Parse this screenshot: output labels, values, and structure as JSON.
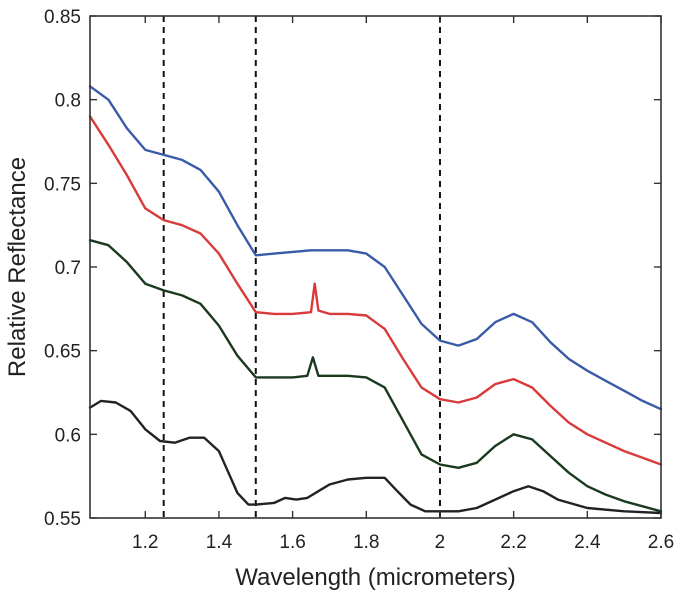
{
  "chart_data": {
    "type": "line",
    "title": "",
    "xlabel": "Wavelength (micrometers)",
    "ylabel": "Relative Reflectance",
    "xlim": [
      1.05,
      2.6
    ],
    "ylim": [
      0.55,
      0.85
    ],
    "xticks": [
      1.2,
      1.4,
      1.6,
      1.8,
      2.0,
      2.2,
      2.4,
      2.6
    ],
    "xtick_labels": [
      "1.2",
      "1.4",
      "1.6",
      "1.8",
      "2",
      "2.2",
      "2.4",
      "2.6"
    ],
    "yticks": [
      0.55,
      0.6,
      0.65,
      0.7,
      0.75,
      0.8,
      0.85
    ],
    "ytick_labels": [
      "0.55",
      "0.6",
      "0.65",
      "0.7",
      "0.75",
      "0.8",
      "0.85"
    ],
    "grid": false,
    "legend": "none",
    "reference_lines_x": [
      1.25,
      1.5,
      2.0
    ],
    "series": [
      {
        "color": "#3a5ba8",
        "x": [
          1.05,
          1.1,
          1.15,
          1.2,
          1.25,
          1.3,
          1.35,
          1.4,
          1.45,
          1.5,
          1.55,
          1.6,
          1.65,
          1.7,
          1.75,
          1.8,
          1.85,
          1.9,
          1.95,
          2.0,
          2.05,
          2.1,
          2.15,
          2.2,
          2.25,
          2.3,
          2.35,
          2.4,
          2.45,
          2.5,
          2.55,
          2.6
        ],
        "values": [
          0.808,
          0.8,
          0.783,
          0.77,
          0.767,
          0.764,
          0.758,
          0.745,
          0.725,
          0.707,
          0.708,
          0.709,
          0.71,
          0.71,
          0.71,
          0.708,
          0.7,
          0.683,
          0.666,
          0.656,
          0.653,
          0.657,
          0.667,
          0.672,
          0.667,
          0.655,
          0.645,
          0.638,
          0.632,
          0.626,
          0.62,
          0.615
        ]
      },
      {
        "color": "#d93a3a",
        "x": [
          1.05,
          1.1,
          1.15,
          1.2,
          1.25,
          1.3,
          1.35,
          1.4,
          1.45,
          1.5,
          1.55,
          1.6,
          1.65,
          1.66,
          1.67,
          1.7,
          1.75,
          1.8,
          1.85,
          1.9,
          1.95,
          2.0,
          2.05,
          2.1,
          2.15,
          2.2,
          2.25,
          2.3,
          2.35,
          2.4,
          2.45,
          2.5,
          2.55,
          2.6
        ],
        "values": [
          0.79,
          0.773,
          0.755,
          0.735,
          0.728,
          0.725,
          0.72,
          0.708,
          0.69,
          0.673,
          0.672,
          0.672,
          0.673,
          0.69,
          0.674,
          0.672,
          0.672,
          0.671,
          0.663,
          0.645,
          0.628,
          0.621,
          0.619,
          0.622,
          0.63,
          0.633,
          0.628,
          0.617,
          0.607,
          0.6,
          0.595,
          0.59,
          0.586,
          0.582
        ]
      },
      {
        "color": "#1a3a1f",
        "x": [
          1.05,
          1.1,
          1.15,
          1.2,
          1.25,
          1.3,
          1.35,
          1.4,
          1.45,
          1.5,
          1.55,
          1.6,
          1.64,
          1.655,
          1.67,
          1.7,
          1.75,
          1.8,
          1.85,
          1.9,
          1.95,
          2.0,
          2.05,
          2.1,
          2.15,
          2.2,
          2.25,
          2.3,
          2.35,
          2.4,
          2.45,
          2.5,
          2.55,
          2.6
        ],
        "values": [
          0.716,
          0.713,
          0.703,
          0.69,
          0.686,
          0.683,
          0.678,
          0.665,
          0.647,
          0.634,
          0.634,
          0.634,
          0.635,
          0.646,
          0.635,
          0.635,
          0.635,
          0.634,
          0.628,
          0.608,
          0.588,
          0.582,
          0.58,
          0.583,
          0.593,
          0.6,
          0.597,
          0.587,
          0.577,
          0.569,
          0.564,
          0.56,
          0.557,
          0.554
        ]
      },
      {
        "color": "#222222",
        "x": [
          1.05,
          1.08,
          1.12,
          1.16,
          1.2,
          1.24,
          1.28,
          1.32,
          1.36,
          1.4,
          1.42,
          1.45,
          1.48,
          1.5,
          1.55,
          1.58,
          1.61,
          1.64,
          1.67,
          1.7,
          1.75,
          1.8,
          1.85,
          1.88,
          1.92,
          1.96,
          2.0,
          2.05,
          2.1,
          2.15,
          2.2,
          2.24,
          2.28,
          2.32,
          2.4,
          2.5,
          2.6
        ],
        "values": [
          0.616,
          0.62,
          0.619,
          0.614,
          0.603,
          0.596,
          0.595,
          0.598,
          0.598,
          0.59,
          0.58,
          0.565,
          0.558,
          0.558,
          0.559,
          0.562,
          0.561,
          0.562,
          0.566,
          0.57,
          0.573,
          0.574,
          0.574,
          0.567,
          0.558,
          0.554,
          0.554,
          0.554,
          0.556,
          0.561,
          0.566,
          0.569,
          0.566,
          0.561,
          0.556,
          0.554,
          0.553
        ]
      }
    ]
  }
}
